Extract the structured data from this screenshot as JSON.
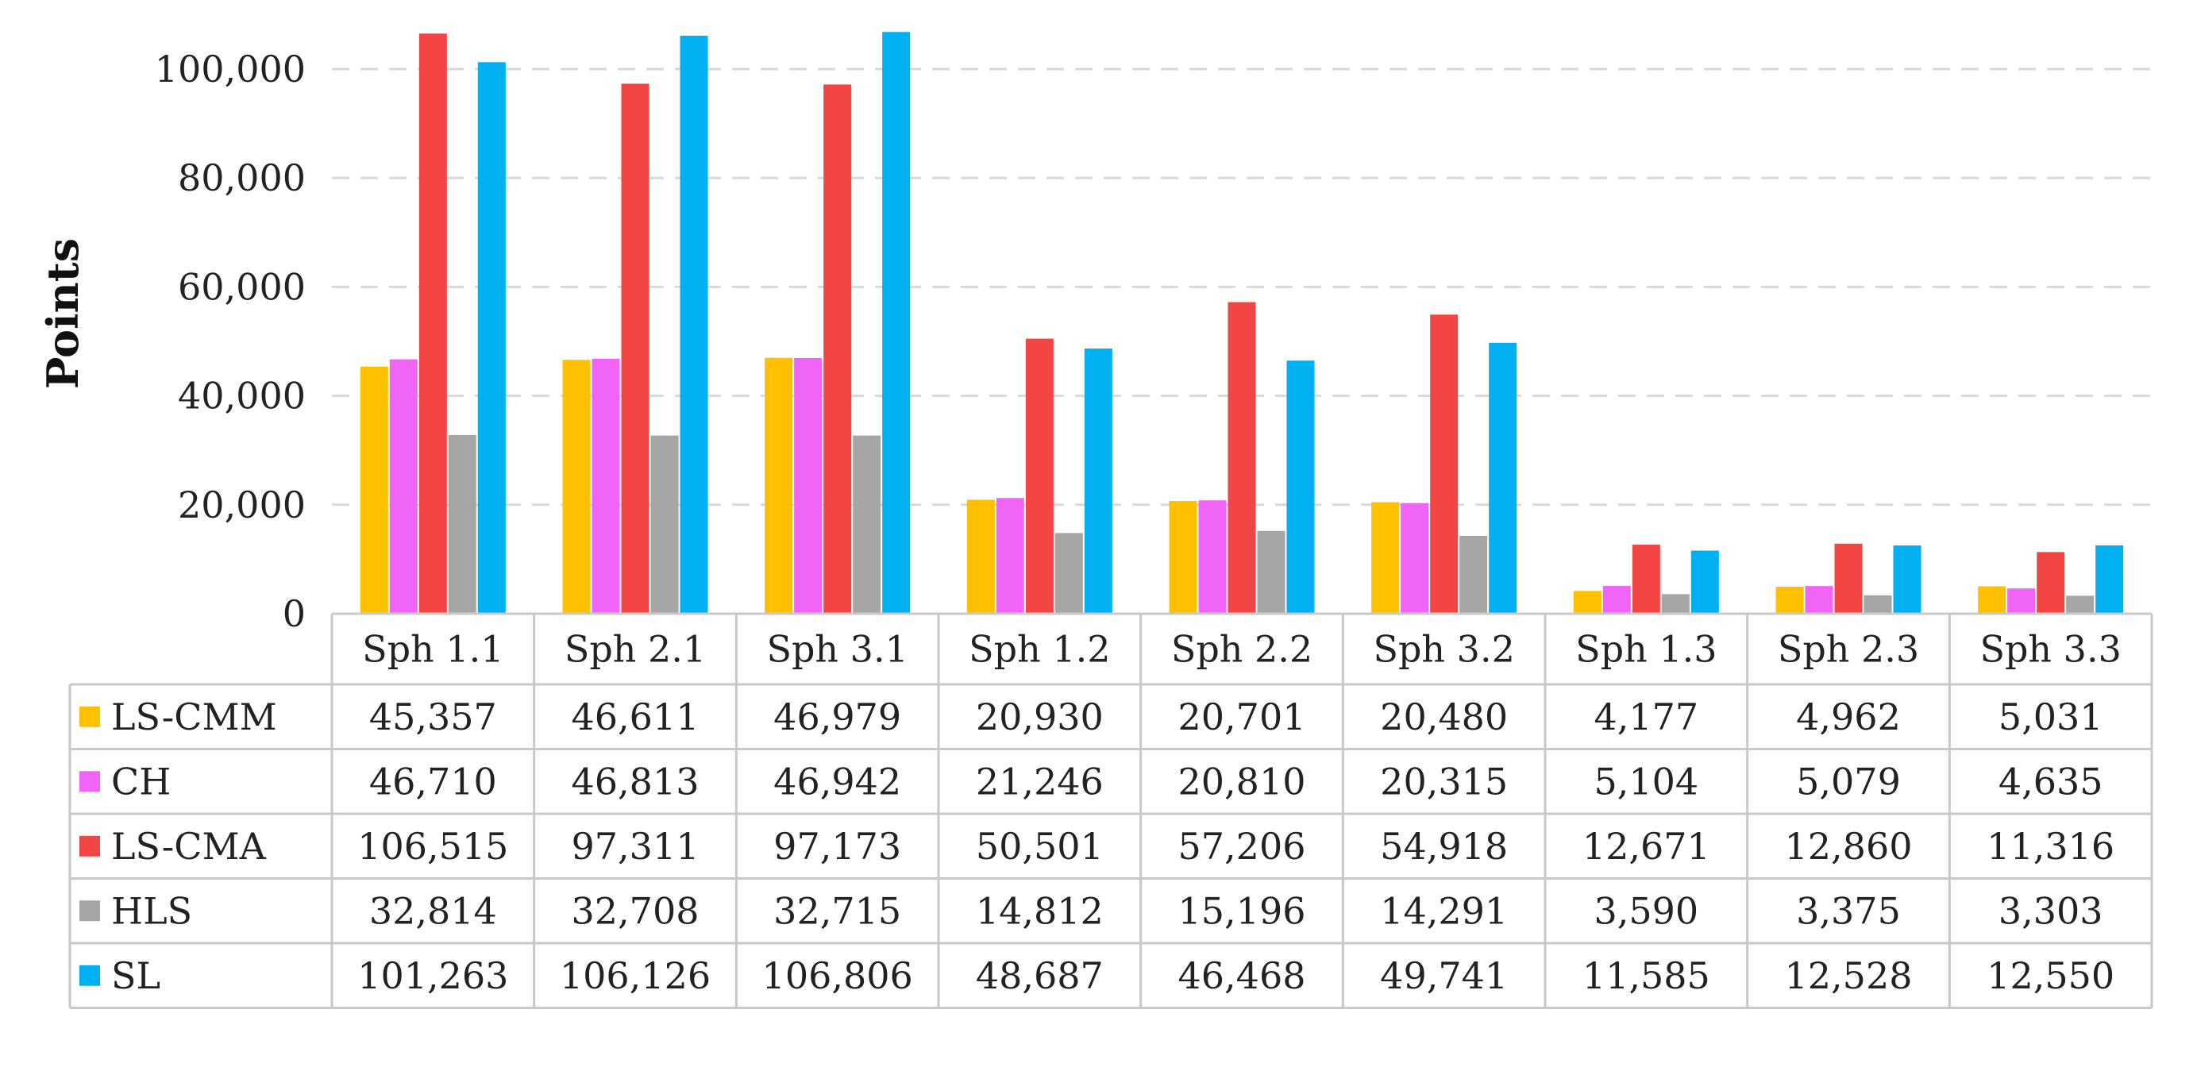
{
  "chart_data": {
    "type": "bar",
    "ylabel": "Points",
    "ylim": [
      0,
      110000
    ],
    "yticks": [
      0,
      20000,
      40000,
      60000,
      80000,
      100000
    ],
    "ytick_labels": [
      "0",
      "20,000",
      "40,000",
      "60,000",
      "80,000",
      "100,000"
    ],
    "grid": true,
    "categories": [
      "Sph 1.1",
      "Sph 2.1",
      "Sph 3.1",
      "Sph 1.2",
      "Sph 2.2",
      "Sph 3.2",
      "Sph 1.3",
      "Sph 2.3",
      "Sph 3.3"
    ],
    "series": [
      {
        "name": "LS-CMM",
        "color": "#FFC000",
        "values": [
          45357,
          46611,
          46979,
          20930,
          20701,
          20480,
          4177,
          4962,
          5031
        ],
        "labels": [
          "45,357",
          "46,611",
          "46,979",
          "20,930",
          "20,701",
          "20,480",
          "4,177",
          "4,962",
          "5,031"
        ]
      },
      {
        "name": "CH",
        "color": "#F065F5",
        "values": [
          46710,
          46813,
          46942,
          21246,
          20810,
          20315,
          5104,
          5079,
          4635
        ],
        "labels": [
          "46,710",
          "46,813",
          "46,942",
          "21,246",
          "20,810",
          "20,315",
          "5,104",
          "5,079",
          "4,635"
        ]
      },
      {
        "name": "LS-CMA",
        "color": "#F44545",
        "values": [
          106515,
          97311,
          97173,
          50501,
          57206,
          54918,
          12671,
          12860,
          11316
        ],
        "labels": [
          "106,515",
          "97,311",
          "97,173",
          "50,501",
          "57,206",
          "54,918",
          "12,671",
          "12,860",
          "11,316"
        ]
      },
      {
        "name": "HLS",
        "color": "#A6A6A6",
        "values": [
          32814,
          32708,
          32715,
          14812,
          15196,
          14291,
          3590,
          3375,
          3303
        ],
        "labels": [
          "32,814",
          "32,708",
          "32,715",
          "14,812",
          "15,196",
          "14,291",
          "3,590",
          "3,375",
          "3,303"
        ]
      },
      {
        "name": "SL",
        "color": "#00B0F0",
        "values": [
          101263,
          106126,
          106806,
          48687,
          46468,
          49741,
          11585,
          12528,
          12550
        ],
        "labels": [
          "101,263",
          "106,126",
          "106,806",
          "48,687",
          "46,468",
          "49,741",
          "11,585",
          "12,528",
          "12,550"
        ]
      }
    ]
  }
}
